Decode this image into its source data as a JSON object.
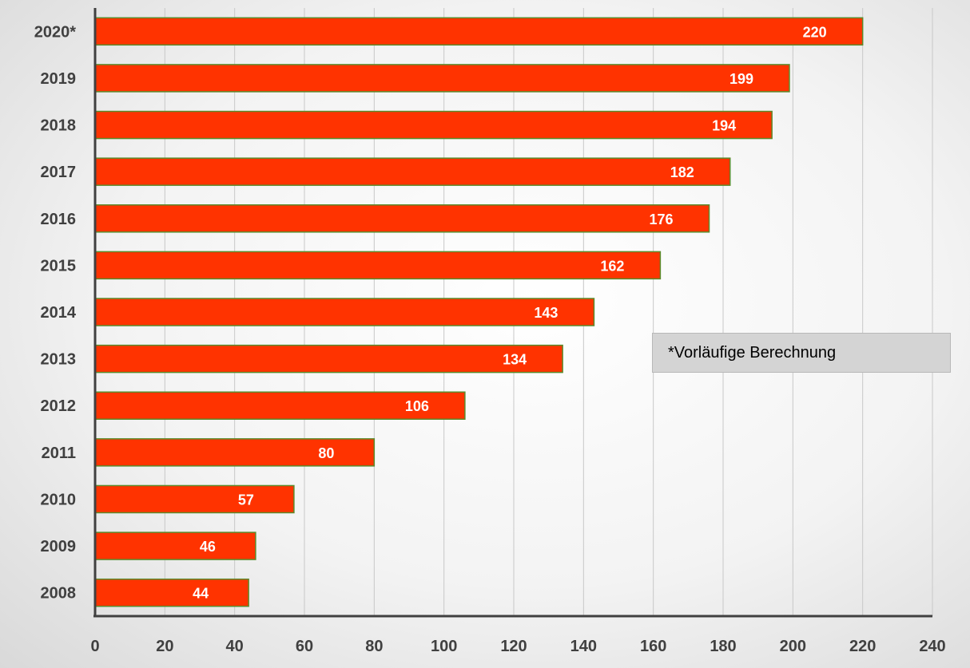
{
  "chart_data": {
    "type": "bar",
    "orientation": "horizontal",
    "categories": [
      "2020*",
      "2019",
      "2018",
      "2017",
      "2016",
      "2015",
      "2014",
      "2013",
      "2012",
      "2011",
      "2010",
      "2009",
      "2008"
    ],
    "values": [
      220,
      199,
      194,
      182,
      176,
      162,
      143,
      134,
      106,
      80,
      57,
      46,
      44
    ],
    "xlim": [
      0,
      240
    ],
    "xticks": [
      0,
      20,
      40,
      60,
      80,
      100,
      120,
      140,
      160,
      180,
      200,
      220,
      240
    ],
    "grid": "vertical",
    "data_labels": true,
    "annotation": "*Vorläufige Berechnung",
    "colors": {
      "bar_fill": "#ff3300",
      "bar_border": "#5b8a2b",
      "grid": "#c8c8c8",
      "axis": "#404040",
      "label_text": "#404040",
      "value_text": "#ffffff"
    }
  }
}
